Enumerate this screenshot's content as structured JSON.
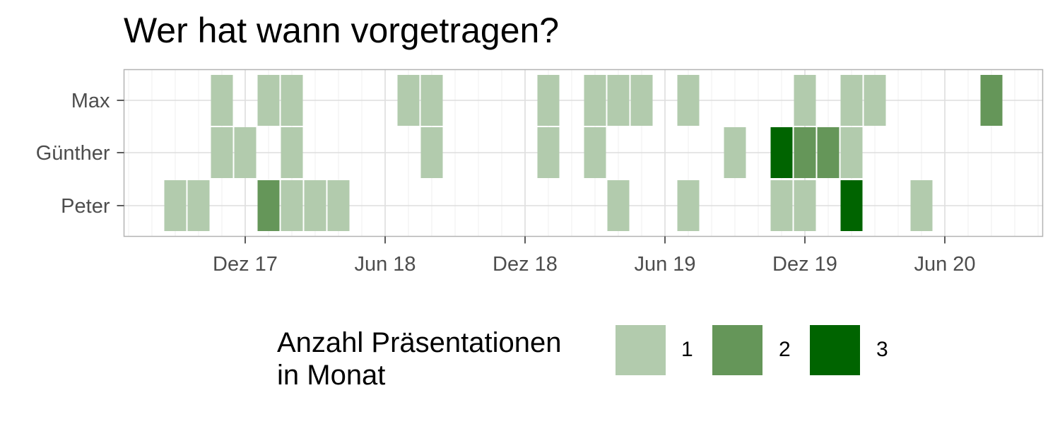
{
  "chart_data": {
    "type": "heatmap",
    "title": "Wer hat wann vorgetragen?",
    "xlabel": "",
    "ylabel": "",
    "x_unit": "month",
    "xlim": [
      "2017-07",
      "2020-10"
    ],
    "x_ticks": [
      {
        "date": "2017-12",
        "label": "Dez 17"
      },
      {
        "date": "2018-06",
        "label": "Jun 18"
      },
      {
        "date": "2018-12",
        "label": "Dez 18"
      },
      {
        "date": "2019-06",
        "label": "Jun 19"
      },
      {
        "date": "2019-12",
        "label": "Dez 19"
      },
      {
        "date": "2020-06",
        "label": "Jun 20"
      }
    ],
    "rows": [
      "Max",
      "Günther",
      "Peter"
    ],
    "grid": true,
    "legend_position": "bottom",
    "legend": {
      "title": "Anzahl Präsentationen in Monat",
      "title_lines": [
        "Anzahl Präsentationen",
        "in Monat"
      ],
      "levels": [
        {
          "value": 1,
          "label": "1",
          "color": "#b2cbad"
        },
        {
          "value": 2,
          "label": "2",
          "color": "#659659"
        },
        {
          "value": 3,
          "label": "3",
          "color": "#006400"
        }
      ]
    },
    "cells": [
      {
        "person": "Max",
        "month": "2017-11",
        "count": 1
      },
      {
        "person": "Max",
        "month": "2018-01",
        "count": 1
      },
      {
        "person": "Max",
        "month": "2018-02",
        "count": 1
      },
      {
        "person": "Max",
        "month": "2018-07",
        "count": 1
      },
      {
        "person": "Max",
        "month": "2018-08",
        "count": 1
      },
      {
        "person": "Max",
        "month": "2019-01",
        "count": 1
      },
      {
        "person": "Max",
        "month": "2019-03",
        "count": 1
      },
      {
        "person": "Max",
        "month": "2019-04",
        "count": 1
      },
      {
        "person": "Max",
        "month": "2019-05",
        "count": 1
      },
      {
        "person": "Max",
        "month": "2019-07",
        "count": 1
      },
      {
        "person": "Max",
        "month": "2019-12",
        "count": 1
      },
      {
        "person": "Max",
        "month": "2020-02",
        "count": 1
      },
      {
        "person": "Max",
        "month": "2020-03",
        "count": 1
      },
      {
        "person": "Max",
        "month": "2020-08",
        "count": 2
      },
      {
        "person": "Günther",
        "month": "2017-11",
        "count": 1
      },
      {
        "person": "Günther",
        "month": "2017-12",
        "count": 1
      },
      {
        "person": "Günther",
        "month": "2018-02",
        "count": 1
      },
      {
        "person": "Günther",
        "month": "2018-08",
        "count": 1
      },
      {
        "person": "Günther",
        "month": "2019-01",
        "count": 1
      },
      {
        "person": "Günther",
        "month": "2019-03",
        "count": 1
      },
      {
        "person": "Günther",
        "month": "2019-09",
        "count": 1
      },
      {
        "person": "Günther",
        "month": "2019-11",
        "count": 3
      },
      {
        "person": "Günther",
        "month": "2019-12",
        "count": 2
      },
      {
        "person": "Günther",
        "month": "2020-01",
        "count": 2
      },
      {
        "person": "Günther",
        "month": "2020-02",
        "count": 1
      },
      {
        "person": "Peter",
        "month": "2017-09",
        "count": 1
      },
      {
        "person": "Peter",
        "month": "2017-10",
        "count": 1
      },
      {
        "person": "Peter",
        "month": "2018-01",
        "count": 2
      },
      {
        "person": "Peter",
        "month": "2018-02",
        "count": 1
      },
      {
        "person": "Peter",
        "month": "2018-03",
        "count": 1
      },
      {
        "person": "Peter",
        "month": "2018-04",
        "count": 1
      },
      {
        "person": "Peter",
        "month": "2019-04",
        "count": 1
      },
      {
        "person": "Peter",
        "month": "2019-07",
        "count": 1
      },
      {
        "person": "Peter",
        "month": "2019-11",
        "count": 1
      },
      {
        "person": "Peter",
        "month": "2019-12",
        "count": 1
      },
      {
        "person": "Peter",
        "month": "2020-02",
        "count": 3
      },
      {
        "person": "Peter",
        "month": "2020-05",
        "count": 1
      }
    ]
  }
}
